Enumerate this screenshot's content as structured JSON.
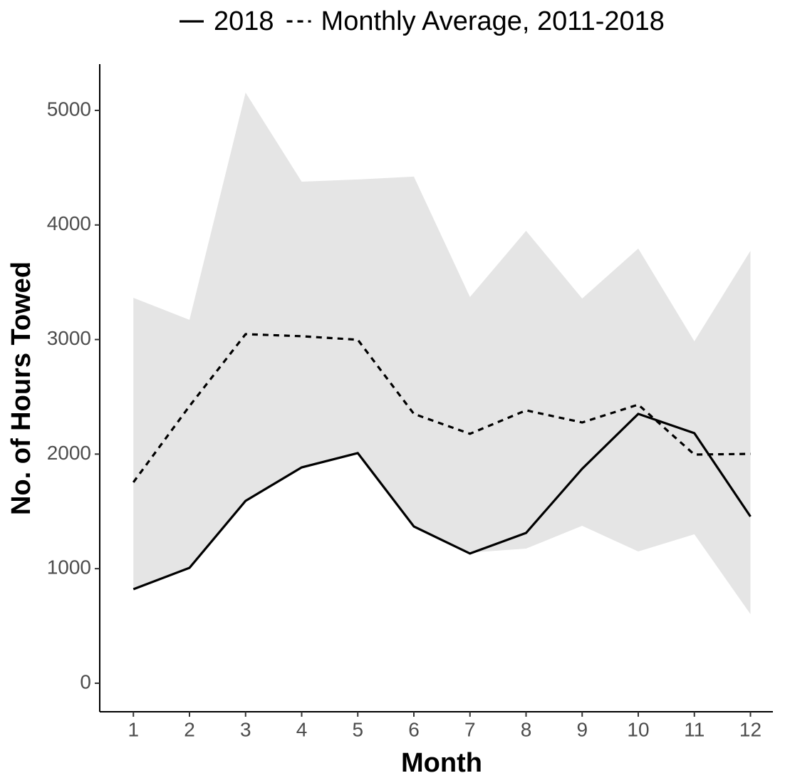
{
  "chart_data": {
    "type": "line",
    "x_label": "Month",
    "y_label": "No. of Hours Towed",
    "x": [
      1,
      2,
      3,
      4,
      5,
      6,
      7,
      8,
      9,
      10,
      11,
      12
    ],
    "xlim": [
      0.4,
      12.4
    ],
    "xticks": [
      1,
      2,
      3,
      4,
      5,
      6,
      7,
      8,
      9,
      10,
      11,
      12
    ],
    "ylim": [
      -249,
      5404
    ],
    "yticks": [
      0,
      1000,
      2000,
      3000,
      4000,
      5000
    ],
    "legend": "top",
    "band": {
      "color": "#e5e5e5",
      "upper": [
        3364,
        3172,
        5155,
        4378,
        4397,
        4422,
        3371,
        3949,
        3358,
        3794,
        2985,
        3775
      ],
      "lower": [
        821,
        1007,
        1592,
        1884,
        2009,
        1368,
        1140,
        1175,
        1374,
        1150,
        1300,
        603
      ]
    },
    "series": [
      {
        "name": "2018",
        "color": "#000000",
        "linestyle": "solid",
        "values": [
          821,
          1007,
          1592,
          1884,
          2009,
          1368,
          1132,
          1312,
          1872,
          2351,
          2183,
          1455
        ]
      },
      {
        "name": "Monthly Average, 2011-2018",
        "color": "#000000",
        "linestyle": "dashed",
        "values": [
          1754,
          2419,
          3047,
          3029,
          2998,
          2351,
          2177,
          2382,
          2276,
          2432,
          1996,
          2002
        ]
      }
    ]
  }
}
